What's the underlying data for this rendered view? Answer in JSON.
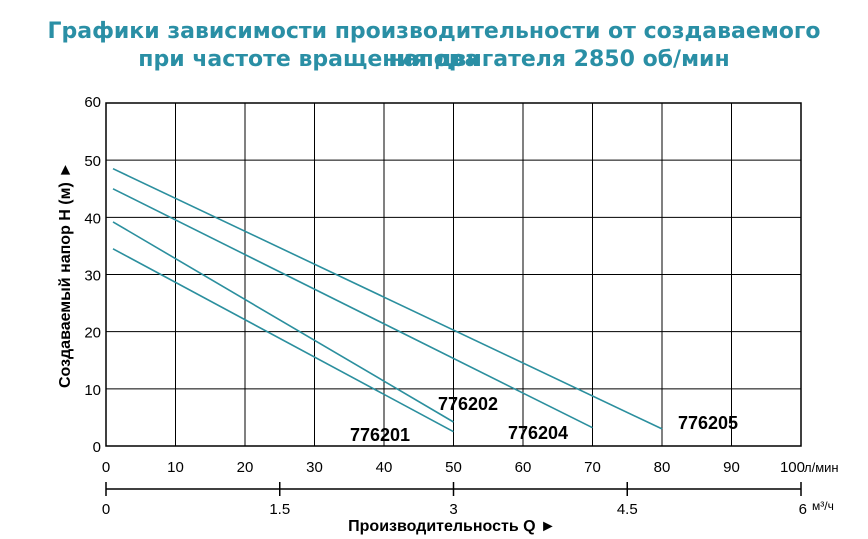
{
  "title_line1": "Графики зависимости производительности от создаваемого напора",
  "title_line2": "при частоте вращения двигателя 2850 об/мин",
  "colors": {
    "curve": "#2b8f9e",
    "title": "#2a8fa5",
    "grid": "#000000"
  },
  "chart_data": {
    "type": "line",
    "title": "Графики зависимости производительности от создаваемого напора при частоте вращения двигателя 2850 об/мин",
    "xlabel": "Производительность Q ►",
    "ylabel": "Создаваемый напор H (м) ►",
    "x_unit": "л/мин",
    "x2_unit": "м³/ч",
    "xlim": [
      0,
      100
    ],
    "ylim": [
      0,
      60
    ],
    "x_ticks": [
      "0",
      "10",
      "20",
      "30",
      "40",
      "50",
      "60",
      "70",
      "80",
      "90",
      "100"
    ],
    "x2_ticks": [
      "0",
      "1.5",
      "3",
      "4.5",
      "6"
    ],
    "y_ticks": [
      "0",
      "10",
      "20",
      "30",
      "40",
      "50",
      "60"
    ],
    "grid": true,
    "series": [
      {
        "name": "776201",
        "x": [
          1,
          50
        ],
        "y": [
          34.5,
          2.5
        ]
      },
      {
        "name": "776202",
        "x": [
          1,
          50
        ],
        "y": [
          39.2,
          4.2
        ]
      },
      {
        "name": "776204",
        "x": [
          1,
          70
        ],
        "y": [
          45,
          3.2
        ]
      },
      {
        "name": "776205",
        "x": [
          1,
          80
        ],
        "y": [
          48.5,
          3
        ]
      }
    ]
  }
}
